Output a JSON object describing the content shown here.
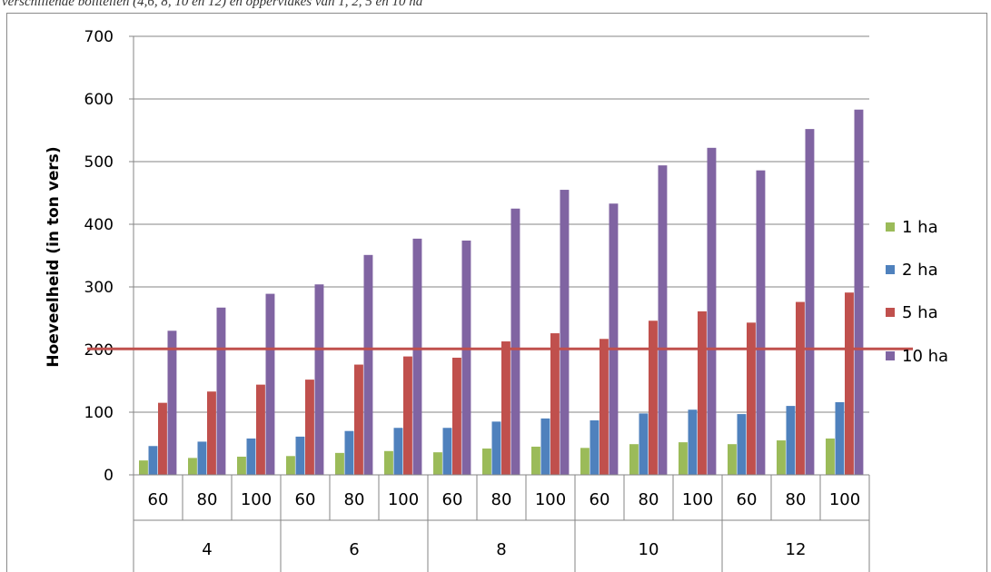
{
  "caption": "verschillende bolitellen (4,6, 8, 10 en 12) en oppervlakes van 1, 2, 5 en 10 ha",
  "chart_data": {
    "type": "bar",
    "title": "",
    "xlabel": "",
    "ylabel": "Hoeveelheid (in ton vers)",
    "ylim": [
      0,
      700
    ],
    "yticks": [
      0,
      100,
      200,
      300,
      400,
      500,
      600,
      700
    ],
    "grid": true,
    "legend_position": "right",
    "groups": [
      "4",
      "6",
      "8",
      "10",
      "12"
    ],
    "categories": [
      "60",
      "80",
      "100",
      "60",
      "80",
      "100",
      "60",
      "80",
      "100",
      "60",
      "80",
      "100",
      "60",
      "80",
      "100"
    ],
    "series": [
      {
        "name": "1 ha",
        "color": "#9bbb59",
        "values": [
          23,
          27,
          29,
          30,
          35,
          38,
          36,
          42,
          45,
          43,
          49,
          52,
          49,
          55,
          58
        ]
      },
      {
        "name": "2 ha",
        "color": "#4f81bd",
        "values": [
          46,
          53,
          58,
          61,
          70,
          75,
          75,
          85,
          90,
          87,
          98,
          104,
          97,
          110,
          116
        ]
      },
      {
        "name": "5 ha",
        "color": "#c0504d",
        "values": [
          115,
          133,
          144,
          152,
          176,
          189,
          187,
          213,
          226,
          217,
          246,
          261,
          243,
          276,
          291
        ]
      },
      {
        "name": "10 ha",
        "color": "#8064a2",
        "values": [
          230,
          267,
          289,
          304,
          351,
          377,
          374,
          425,
          455,
          433,
          494,
          522,
          486,
          552,
          583
        ]
      }
    ],
    "reference_line": {
      "value": 201,
      "color": "#c0504d"
    }
  }
}
